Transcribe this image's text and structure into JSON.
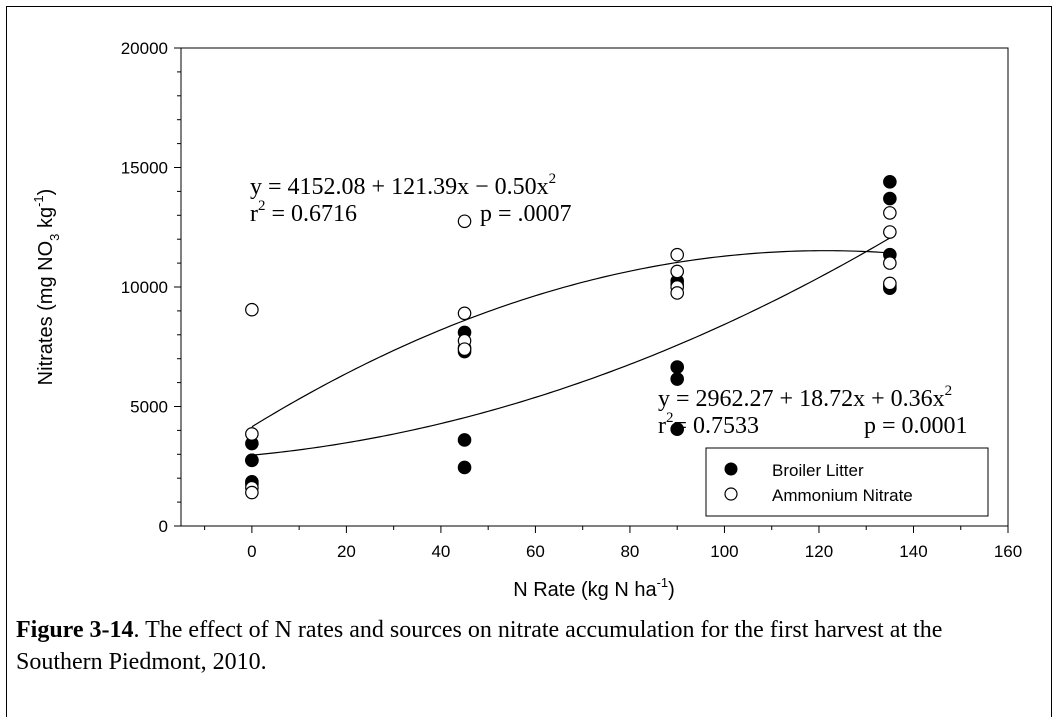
{
  "chart_data": {
    "type": "scatter",
    "xlabel_main": "N Rate (kg N ha",
    "xlabel_sup": "-1",
    "xlabel_tail": ")",
    "ylabel_main": "Nitrates (mg NO",
    "ylabel_sub": "3",
    "ylabel_mid": " kg",
    "ylabel_sup": "-1",
    "ylabel_tail": ")",
    "xlim": [
      -15,
      160
    ],
    "ylim": [
      0,
      20000
    ],
    "xticks": [
      "0",
      "20",
      "40",
      "60",
      "80",
      "100",
      "120",
      "140",
      "160"
    ],
    "yticks": [
      "0",
      "5000",
      "10000",
      "15000",
      "20000"
    ],
    "legend": {
      "placement": "bottom-right",
      "entries": [
        "Broiler Litter",
        "Ammonium Nitrate"
      ]
    },
    "series": [
      {
        "name": "Broiler Litter",
        "marker": "filled-circle",
        "points": [
          [
            0,
            3450
          ],
          [
            0,
            2750
          ],
          [
            0,
            2750
          ],
          [
            0,
            1850
          ],
          [
            0,
            1750
          ],
          [
            45,
            8100
          ],
          [
            45,
            7450
          ],
          [
            45,
            7300
          ],
          [
            45,
            3600
          ],
          [
            45,
            2450
          ],
          [
            90,
            10250
          ],
          [
            90,
            10100
          ],
          [
            90,
            6650
          ],
          [
            90,
            6150
          ],
          [
            90,
            4050
          ],
          [
            135,
            14400
          ],
          [
            135,
            13700
          ],
          [
            135,
            11350
          ],
          [
            135,
            10050
          ],
          [
            135,
            9950
          ]
        ],
        "fit": {
          "a": 2962.27,
          "b": 18.72,
          "c": 0.36
        },
        "equation": "y = 2962.27 + 18.72x + 0.36x",
        "equation_sup": "2",
        "r2_label": "r",
        "r2_sup": "2",
        "r2_value": "= 0.7533",
        "p_text": "p = 0.0001"
      },
      {
        "name": "Ammonium Nitrate",
        "marker": "open-circle",
        "points": [
          [
            0,
            9050
          ],
          [
            0,
            3850
          ],
          [
            0,
            1600
          ],
          [
            0,
            1400
          ],
          [
            45,
            12750
          ],
          [
            45,
            8900
          ],
          [
            45,
            7750
          ],
          [
            45,
            7400
          ],
          [
            90,
            11350
          ],
          [
            90,
            10650
          ],
          [
            90,
            10000
          ],
          [
            90,
            9750
          ],
          [
            135,
            13100
          ],
          [
            135,
            12300
          ],
          [
            135,
            11000
          ],
          [
            135,
            10150
          ]
        ],
        "fit": {
          "a": 4152.08,
          "b": 121.39,
          "c": -0.5
        },
        "equation": "y = 4152.08 + 121.39x − 0.50x",
        "equation_sup": "2",
        "r2_label": "r",
        "r2_sup": "2",
        "r2_value": " = 0.6716",
        "p_text": "p = .0007"
      }
    ]
  },
  "caption": {
    "label": "Figure 3-14",
    "text": ".  The effect of N rates and sources on nitrate accumulation for the first harvest at the Southern Piedmont, 2010."
  },
  "colors": {
    "ink": "#000000",
    "background": "#ffffff"
  }
}
